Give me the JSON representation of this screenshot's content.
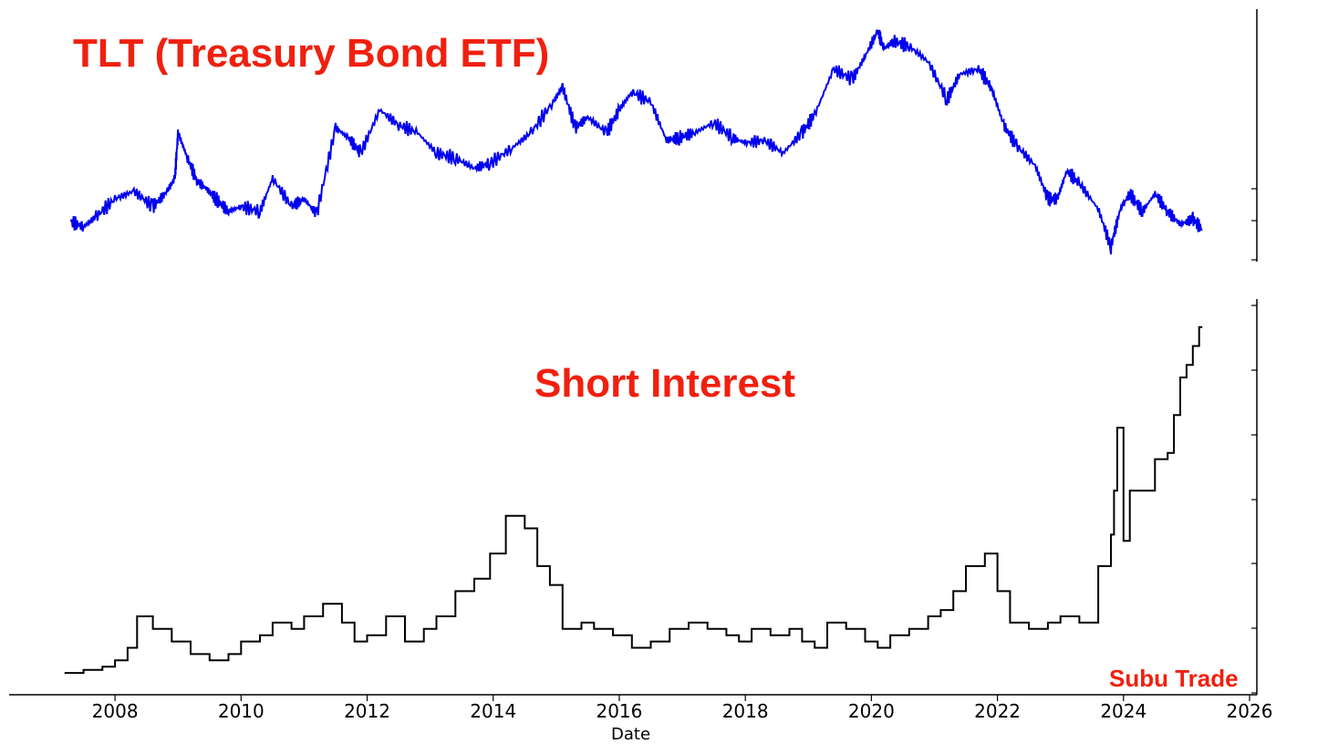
{
  "titles": {
    "top": "TLT (Treasury Bond ETF)",
    "middle": "Short Interest",
    "watermark": "Subu Trade"
  },
  "colors": {
    "tlt_line": "#0000ee",
    "short_interest_line": "#000000",
    "annotation_text": "#f0200f"
  },
  "chart_data": [
    {
      "type": "line",
      "title": "TLT (Treasury Bond ETF)",
      "xlabel": "",
      "ylabel": "",
      "xlim": [
        2007.0,
        2026.0
      ],
      "grid": false,
      "series": [
        {
          "name": "TLT (Treasury Bond ETF)",
          "x": [
            2007.3,
            2007.5,
            2007.7,
            2008.0,
            2008.3,
            2008.6,
            2008.8,
            2008.95,
            2009.0,
            2009.15,
            2009.3,
            2009.45,
            2009.6,
            2009.8,
            2010.0,
            2010.3,
            2010.5,
            2010.8,
            2011.0,
            2011.2,
            2011.5,
            2011.7,
            2011.9,
            2012.2,
            2012.5,
            2012.8,
            2013.1,
            2013.4,
            2013.7,
            2013.95,
            2014.3,
            2014.6,
            2014.95,
            2015.1,
            2015.3,
            2015.5,
            2015.8,
            2016.0,
            2016.2,
            2016.5,
            2016.75,
            2016.95,
            2017.2,
            2017.5,
            2017.8,
            2018.0,
            2018.3,
            2018.6,
            2018.9,
            2019.1,
            2019.4,
            2019.7,
            2019.9,
            2020.1,
            2020.2,
            2020.35,
            2020.6,
            2020.9,
            2021.2,
            2021.4,
            2021.7,
            2021.9,
            2022.1,
            2022.3,
            2022.6,
            2022.8,
            2022.95,
            2023.1,
            2023.3,
            2023.6,
            2023.8,
            2023.95,
            2024.1,
            2024.3,
            2024.5,
            2024.7,
            2024.9,
            2025.1,
            2025.25
          ],
          "y": [
            95,
            93,
            97,
            104,
            107,
            101,
            106,
            112,
            130,
            120,
            111,
            108,
            104,
            99,
            101,
            99,
            112,
            101,
            104,
            98,
            132,
            128,
            122,
            139,
            133,
            130,
            122,
            120,
            116,
            118,
            124,
            130,
            142,
            148,
            132,
            136,
            130,
            139,
            146,
            142,
            127,
            128,
            130,
            134,
            128,
            126,
            127,
            122,
            130,
            137,
            155,
            151,
            160,
            170,
            163,
            166,
            164,
            158,
            143,
            153,
            155,
            148,
            133,
            125,
            117,
            104,
            104,
            115,
            110,
            100,
            85,
            100,
            106,
            99,
            106,
            99,
            94,
            96,
            92
          ]
        }
      ]
    },
    {
      "type": "line",
      "title": "Short Interest",
      "xlabel": "Date",
      "ylabel": "",
      "xlim": [
        2007.0,
        2026.0
      ],
      "x_ticks": [
        "2008",
        "2010",
        "2012",
        "2014",
        "2016",
        "2018",
        "2020",
        "2022",
        "2024",
        "2026"
      ],
      "grid": false,
      "series": [
        {
          "name": "Short Interest",
          "step": true,
          "x": [
            2007.2,
            2007.5,
            2007.8,
            2008.0,
            2008.2,
            2008.35,
            2008.6,
            2008.9,
            2009.2,
            2009.5,
            2009.8,
            2010.0,
            2010.3,
            2010.5,
            2010.8,
            2011.0,
            2011.3,
            2011.6,
            2011.8,
            2012.0,
            2012.3,
            2012.6,
            2012.9,
            2013.1,
            2013.4,
            2013.7,
            2013.95,
            2014.2,
            2014.5,
            2014.7,
            2014.9,
            2015.1,
            2015.4,
            2015.6,
            2015.9,
            2016.2,
            2016.5,
            2016.8,
            2017.1,
            2017.4,
            2017.7,
            2017.9,
            2018.1,
            2018.4,
            2018.7,
            2018.9,
            2019.1,
            2019.3,
            2019.6,
            2019.9,
            2020.1,
            2020.3,
            2020.6,
            2020.9,
            2021.1,
            2021.3,
            2021.5,
            2021.8,
            2022.0,
            2022.2,
            2022.5,
            2022.8,
            2023.0,
            2023.3,
            2023.6,
            2023.8,
            2023.85,
            2023.9,
            2024.0,
            2024.1,
            2024.3,
            2024.5,
            2024.7,
            2024.8,
            2024.9,
            2025.0,
            2025.1,
            2025.2,
            2025.25
          ],
          "y": [
            1,
            1.5,
            2,
            3,
            5,
            10,
            8,
            6,
            4,
            3,
            4,
            6,
            7,
            9,
            8,
            10,
            12,
            9,
            6,
            7,
            10,
            6,
            8,
            10,
            14,
            16,
            20,
            26,
            24,
            18,
            15,
            8,
            9,
            8,
            7,
            5,
            6,
            8,
            9,
            8,
            7,
            6,
            8,
            7,
            8,
            6,
            5,
            9,
            8,
            6,
            5,
            7,
            8,
            10,
            11,
            14,
            18,
            20,
            14,
            9,
            8,
            9,
            10,
            9,
            18,
            23,
            30,
            40,
            22,
            30,
            30,
            35,
            36,
            42,
            48,
            50,
            53,
            56,
            56
          ]
        }
      ]
    }
  ]
}
